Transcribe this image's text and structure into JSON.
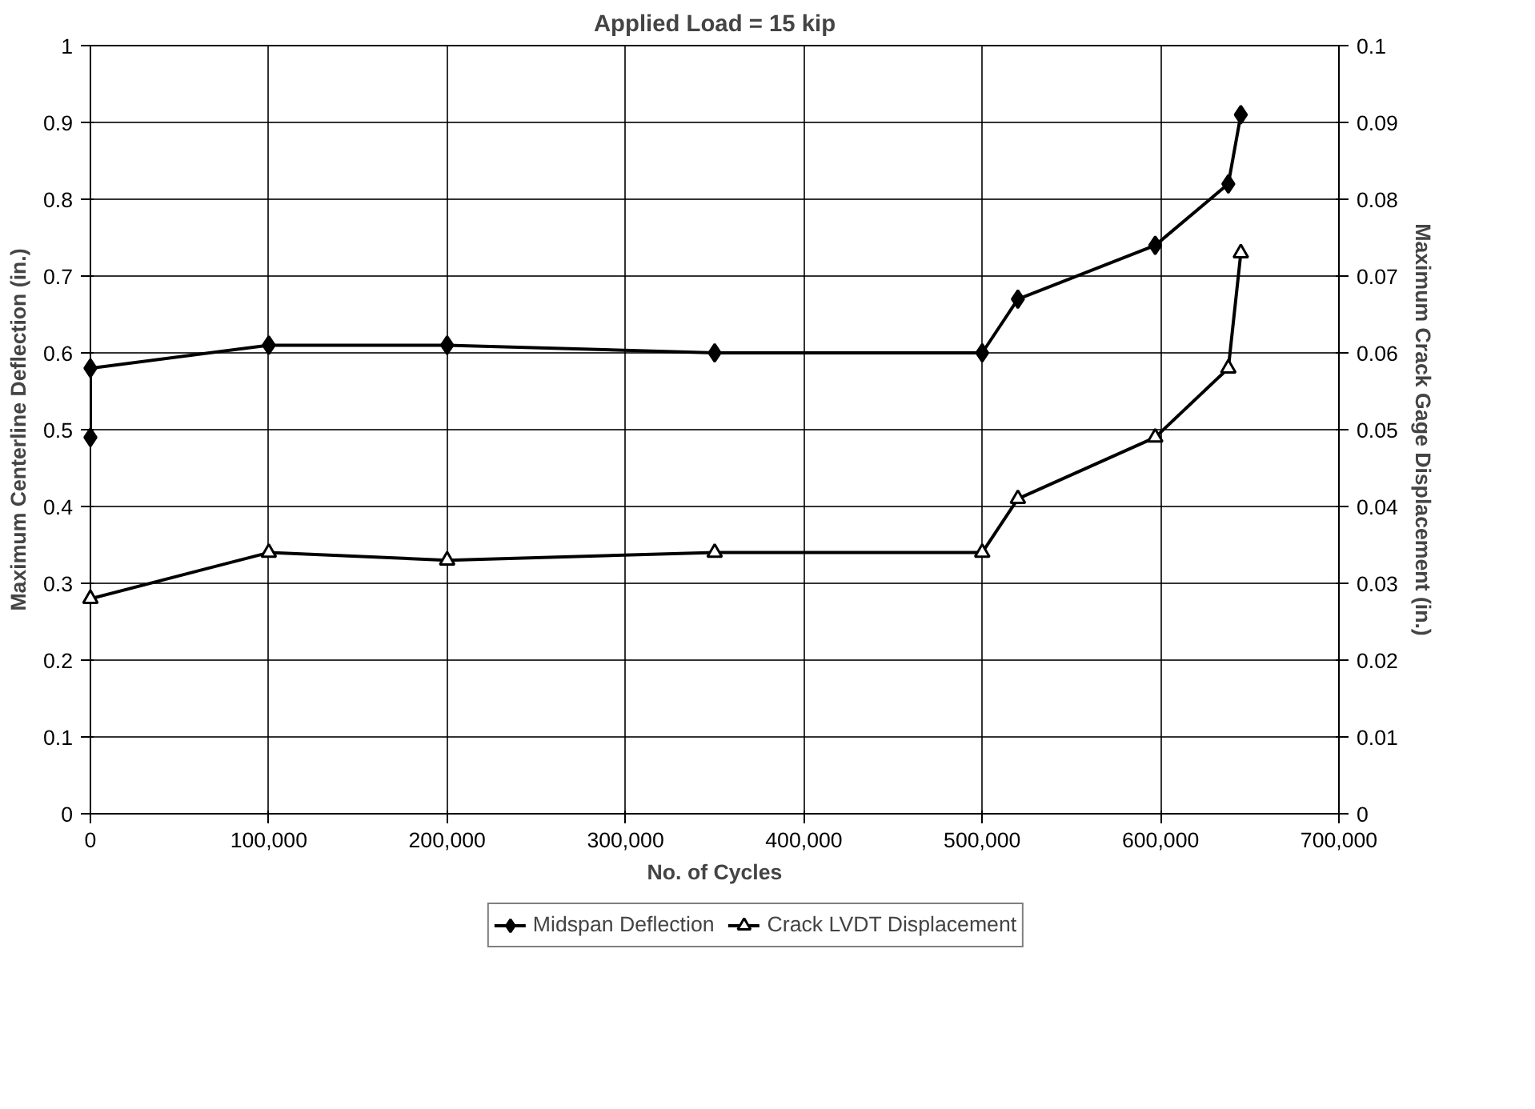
{
  "chart_data": {
    "type": "line",
    "title": "Applied Load = 15 kip",
    "xlabel": "No. of Cycles",
    "ylabel": "Maximum Centerline Deflection (in.)",
    "y2label": "Maximum Crack Gage Displacement (in.)",
    "series": [
      {
        "name": "Midspan Deflection",
        "color": "#000000",
        "marker": "diamond",
        "x": [
          0,
          0,
          100000,
          200000,
          350000,
          500000,
          520000,
          597000,
          638000,
          645000
        ],
        "values": [
          0.49,
          0.58,
          0.61,
          0.61,
          0.6,
          0.6,
          0.67,
          0.74,
          0.82,
          0.91
        ]
      },
      {
        "name": "Crack LVDT Displacement",
        "color": "#000000",
        "marker": "triangle",
        "axis": "y2",
        "x": [
          0,
          100000,
          200000,
          350000,
          500000,
          520000,
          597000,
          638000,
          645000
        ],
        "values": [
          0.028,
          0.034,
          0.033,
          0.034,
          0.034,
          0.041,
          0.049,
          0.058,
          0.073
        ]
      }
    ],
    "xlim": [
      0,
      700000
    ],
    "xticks": [
      {
        "value": 0,
        "label": "0"
      },
      {
        "value": 100000,
        "label": "100,000"
      },
      {
        "value": 200000,
        "label": "200,000"
      },
      {
        "value": 300000,
        "label": "300,000"
      },
      {
        "value": 400000,
        "label": "400,000"
      },
      {
        "value": 500000,
        "label": "500,000"
      },
      {
        "value": 600000,
        "label": "600,000"
      },
      {
        "value": 700000,
        "label": "700,000"
      }
    ],
    "ylim": [
      0,
      1
    ],
    "yticks": [
      0,
      0.1,
      0.2,
      0.3,
      0.4,
      0.5,
      0.6,
      0.7,
      0.8,
      0.9,
      1
    ],
    "y2lim": [
      0,
      0.1
    ],
    "y2ticks": [
      0,
      0.01,
      0.02,
      0.03,
      0.04,
      0.05,
      0.06,
      0.07,
      0.08,
      0.09,
      0.1
    ],
    "grid": true,
    "legend": "bottom",
    "line_style": "solid"
  }
}
